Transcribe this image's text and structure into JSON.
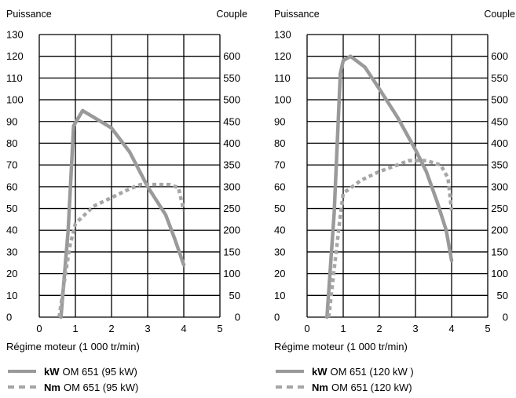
{
  "chart_data": [
    {
      "type": "line",
      "left_axis_label": "Puissance",
      "right_axis_label": "Couple",
      "xlabel": "Régime moteur (1 000 tr/min)",
      "xlim": [
        0,
        5
      ],
      "ylim": [
        0,
        130
      ],
      "y2lim": [
        0,
        650
      ],
      "x_ticks": [
        "0",
        "1",
        "2",
        "3",
        "4",
        "5"
      ],
      "y_ticks": [
        "0",
        "10",
        "20",
        "30",
        "40",
        "50",
        "60",
        "70",
        "80",
        "90",
        "100",
        "110",
        "120",
        "130"
      ],
      "y2_ticks": [
        "0",
        "50",
        "100",
        "150",
        "200",
        "250",
        "300",
        "350",
        "400",
        "450",
        "500",
        "550",
        "600"
      ],
      "series": [
        {
          "name": "OM 651 (95 kW)",
          "unit": "kW",
          "axis": "left",
          "style": "solid",
          "x": [
            0.6,
            0.8,
            0.95,
            1.2,
            1.5,
            2.0,
            2.5,
            3.0,
            3.5,
            3.75,
            4.0
          ],
          "y": [
            0,
            40,
            88,
            95,
            92,
            87,
            76,
            60,
            47,
            36,
            24
          ]
        },
        {
          "name": "OM 651 (95 kW)",
          "unit": "Nm",
          "axis": "right",
          "style": "dashed",
          "x": [
            0.55,
            0.7,
            0.85,
            1.0,
            1.5,
            2.0,
            2.5,
            2.8,
            3.2,
            3.6,
            3.85,
            4.0
          ],
          "y": [
            0,
            85,
            165,
            215,
            255,
            275,
            295,
            305,
            305,
            305,
            298,
            245
          ]
        }
      ],
      "legend": [
        {
          "unit": "kW",
          "text": "OM 651 (95 kW)",
          "style": "solid"
        },
        {
          "unit": "Nm",
          "text": "OM 651 (95 kW)",
          "style": "dashed"
        }
      ],
      "line_color": "#9a9a9a",
      "dash_color": "#a6a6a6"
    },
    {
      "type": "line",
      "left_axis_label": "Puissance",
      "right_axis_label": "Couple",
      "xlabel": "Régime moteur (1 000 tr/min)",
      "xlim": [
        0,
        5
      ],
      "ylim": [
        0,
        130
      ],
      "y2lim": [
        0,
        650
      ],
      "x_ticks": [
        "0",
        "1",
        "2",
        "3",
        "4",
        "5"
      ],
      "y_ticks": [
        "0",
        "10",
        "20",
        "30",
        "40",
        "50",
        "60",
        "70",
        "80",
        "90",
        "100",
        "110",
        "120",
        "130"
      ],
      "y2_ticks": [
        "0",
        "50",
        "100",
        "150",
        "200",
        "250",
        "300",
        "350",
        "400",
        "450",
        "500",
        "550",
        "600"
      ],
      "series": [
        {
          "name": "OM 651 (120 kW )",
          "unit": "kW",
          "axis": "left",
          "style": "solid",
          "x": [
            0.55,
            0.75,
            0.92,
            1.0,
            1.2,
            1.6,
            2.0,
            2.5,
            3.0,
            3.3,
            3.6,
            3.85,
            4.0
          ],
          "y": [
            0,
            48,
            112,
            118,
            120,
            115,
            105,
            92,
            77,
            67,
            53,
            40,
            26
          ]
        },
        {
          "name": "OM 651 (120 kW)",
          "unit": "Nm",
          "axis": "right",
          "style": "dashed",
          "x": [
            0.6,
            0.75,
            0.9,
            1.0,
            1.5,
            2.0,
            2.5,
            2.8,
            3.3,
            3.7,
            3.9,
            4.0
          ],
          "y": [
            0,
            110,
            220,
            285,
            315,
            335,
            350,
            360,
            360,
            350,
            320,
            245
          ]
        }
      ],
      "legend": [
        {
          "unit": "kW",
          "text": "OM 651 (120 kW )",
          "style": "solid"
        },
        {
          "unit": "Nm",
          "text": "OM 651 (120 kW)",
          "style": "dashed"
        }
      ],
      "line_color": "#9a9a9a",
      "dash_color": "#a6a6a6"
    }
  ]
}
